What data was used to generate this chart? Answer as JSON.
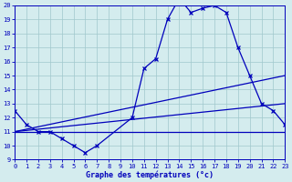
{
  "xlabel": "Graphe des températures (°c)",
  "xlim": [
    0,
    23
  ],
  "ylim": [
    9,
    20
  ],
  "yticks": [
    9,
    10,
    11,
    12,
    13,
    14,
    15,
    16,
    17,
    18,
    19,
    20
  ],
  "xticks": [
    0,
    1,
    2,
    3,
    4,
    5,
    6,
    7,
    8,
    9,
    10,
    11,
    12,
    13,
    14,
    15,
    16,
    17,
    18,
    19,
    20,
    21,
    22,
    23
  ],
  "bg_color": "#d4ecee",
  "line_color": "#0000bb",
  "grid_color": "#a0c8cc",
  "curve1_x": [
    0,
    1,
    2,
    3,
    4,
    5,
    6,
    7,
    10,
    11,
    12,
    13,
    14,
    15,
    16,
    17,
    18,
    19,
    20,
    21,
    22,
    23
  ],
  "curve1_y": [
    12.5,
    11.5,
    11.0,
    11.0,
    10.5,
    10.0,
    9.5,
    10.0,
    12.0,
    15.5,
    16.2,
    19.0,
    20.5,
    19.5,
    19.8,
    20.0,
    19.5,
    17.0,
    15.0,
    13.0,
    12.5,
    11.5
  ],
  "line2_x": [
    0,
    23
  ],
  "line2_y": [
    11.0,
    11.0
  ],
  "line3_x": [
    0,
    23
  ],
  "line3_y": [
    11.0,
    15.0
  ],
  "line4_x": [
    0,
    23
  ],
  "line4_y": [
    11.0,
    13.0
  ]
}
